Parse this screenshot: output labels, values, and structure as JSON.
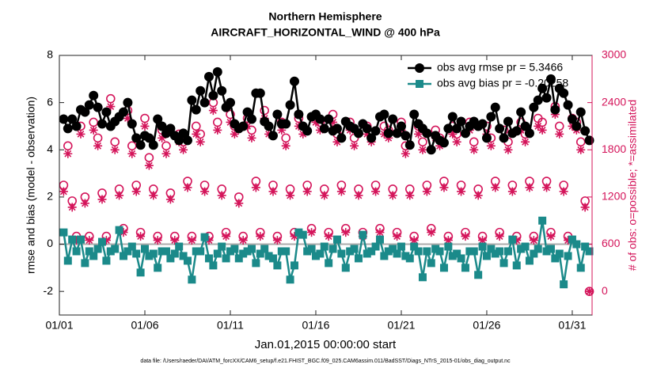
{
  "chart_data": {
    "type": "line",
    "title": "Northern Hemisphere",
    "subtitle": "AIRCRAFT_HORIZONTAL_WIND @ 400 hPa",
    "xlabel": "Jan.01,2015 00:00:00 start",
    "ylabel": "rmse and bias (model - observation)",
    "y2label": "# of obs: o=possible; *=assimilated",
    "footnote": "data file: /Users/raeder/DAI/ATM_forcXX/CAM6_setup/f.e21.FHIST_BGC.f09_025.CAM6assim.011/BadSST/Diags_NTrS_2015-01/obs_diag_output.nc",
    "legend": "northeast",
    "xlim": [
      1,
      32.16
    ],
    "xticks": [
      {
        "value": 1,
        "label": "01/01"
      },
      {
        "value": 6,
        "label": "01/06"
      },
      {
        "value": 11,
        "label": "01/11"
      },
      {
        "value": 16,
        "label": "01/16"
      },
      {
        "value": 21,
        "label": "01/21"
      },
      {
        "value": 26,
        "label": "01/26"
      },
      {
        "value": 31,
        "label": "01/31"
      }
    ],
    "ylim": [
      -3,
      8
    ],
    "yticks": [
      -2,
      0,
      2,
      4,
      6,
      8
    ],
    "y2lim": [
      -300,
      3000
    ],
    "y2ticks": [
      0,
      600,
      1200,
      1800,
      2400,
      3000
    ],
    "y2color": "#d4145a",
    "x": [
      1.25,
      1.5,
      1.75,
      2,
      2.25,
      2.5,
      2.75,
      3,
      3.25,
      3.5,
      3.75,
      4,
      4.25,
      4.5,
      4.75,
      5,
      5.25,
      5.5,
      5.75,
      6,
      6.25,
      6.5,
      6.75,
      7,
      7.25,
      7.5,
      7.75,
      8,
      8.25,
      8.5,
      8.75,
      9,
      9.25,
      9.5,
      9.75,
      10,
      10.25,
      10.5,
      10.75,
      11,
      11.25,
      11.5,
      11.75,
      12,
      12.25,
      12.5,
      12.75,
      13,
      13.25,
      13.5,
      13.75,
      14,
      14.25,
      14.5,
      14.75,
      15,
      15.25,
      15.5,
      15.75,
      16,
      16.25,
      16.5,
      16.75,
      17,
      17.25,
      17.5,
      17.75,
      18,
      18.25,
      18.5,
      18.75,
      19,
      19.25,
      19.5,
      19.75,
      20,
      20.25,
      20.5,
      20.75,
      21,
      21.25,
      21.5,
      21.75,
      22,
      22.25,
      22.5,
      22.75,
      23,
      23.25,
      23.5,
      23.75,
      24,
      24.25,
      24.5,
      24.75,
      25,
      25.25,
      25.5,
      25.75,
      26,
      26.25,
      26.5,
      26.75,
      27,
      27.25,
      27.5,
      27.75,
      28,
      28.25,
      28.5,
      28.75,
      29,
      29.25,
      29.5,
      29.75,
      30,
      30.25,
      30.5,
      30.75,
      31,
      31.25,
      31.5,
      31.75,
      32
    ],
    "series": [
      {
        "name": "obs avg rmse pr = 5.3466",
        "color": "#000000",
        "marker": "circle",
        "axis": "y",
        "values": [
          5.3,
          4.9,
          5.3,
          5.0,
          5.7,
          5.6,
          5.9,
          6.3,
          5.8,
          5.1,
          5.6,
          5.0,
          5.2,
          5.4,
          5.6,
          6.0,
          5.1,
          4.5,
          4.2,
          4.6,
          4.5,
          4.2,
          5.3,
          5.0,
          4.7,
          4.9,
          4.6,
          4.4,
          4.7,
          4.4,
          6.1,
          5.7,
          6.5,
          6.0,
          7.1,
          6.3,
          7.3,
          6.5,
          5.8,
          6.0,
          5.1,
          4.9,
          5.0,
          5.6,
          5.3,
          6.4,
          6.4,
          5.2,
          5.0,
          4.6,
          5.5,
          5.1,
          5.1,
          5.9,
          6.9,
          5.5,
          5.0,
          4.8,
          5.4,
          5.5,
          5.3,
          4.9,
          5.3,
          4.8,
          4.9,
          4.5,
          5.2,
          5.0,
          4.9,
          4.7,
          5.1,
          4.9,
          4.5,
          4.8,
          5.4,
          5.5,
          4.7,
          5.3,
          4.7,
          5.0,
          4.6,
          4.2,
          5.5,
          5.1,
          4.9,
          4.7,
          4.0,
          4.6,
          4.4,
          4.3,
          4.9,
          5.4,
          4.9,
          5.2,
          4.7,
          5.0,
          5.2,
          5.0,
          5.1,
          4.5,
          5.4,
          5.8,
          4.9,
          4.5,
          5.2,
          4.7,
          4.8,
          5.6,
          5.0,
          4.7,
          5.8,
          6.1,
          6.6,
          6.2,
          7.0,
          5.7,
          6.6,
          6.4,
          5.9,
          5.3,
          5.0,
          5.6,
          4.8,
          4.4
        ]
      },
      {
        "name": "obs avg bias pr = -0.20258",
        "color": "#1b8a8a",
        "marker": "square",
        "axis": "y",
        "values": [
          0.5,
          -0.7,
          0.2,
          -0.3,
          0.2,
          -0.8,
          -0.3,
          -0.5,
          -0.2,
          0.1,
          -0.7,
          -0.3,
          -0.2,
          0.6,
          -0.5,
          -0.3,
          -0.1,
          -0.4,
          -1.2,
          -0.2,
          -0.5,
          -0.4,
          -1.0,
          -0.3,
          -0.3,
          -0.6,
          -0.4,
          -0.1,
          -0.5,
          -0.7,
          -1.5,
          -0.3,
          -0.3,
          0.3,
          -0.6,
          -0.9,
          -0.4,
          -0.1,
          -0.6,
          -0.3,
          -0.2,
          -0.6,
          -0.4,
          -0.3,
          -0.2,
          -0.8,
          -0.4,
          -0.2,
          -0.5,
          -0.6,
          -0.9,
          -0.3,
          -0.3,
          -1.5,
          -0.9,
          0.5,
          0.4,
          -0.3,
          -0.2,
          -0.5,
          -0.4,
          -0.1,
          -0.8,
          -0.2,
          0.2,
          -0.4,
          -1.0,
          -0.3,
          -0.2,
          -0.6,
          0.4,
          -0.4,
          -0.3,
          -0.1,
          0.2,
          -0.5,
          -0.3,
          -0.2,
          -0.4,
          -0.1,
          -0.5,
          -0.6,
          -0.1,
          -0.3,
          -1.4,
          -0.3,
          -0.8,
          -0.2,
          -0.3,
          -1.0,
          -0.1,
          -0.5,
          -0.4,
          -0.6,
          -1.0,
          -0.3,
          -0.3,
          -1.3,
          -0.1,
          -0.5,
          -0.2,
          -0.4,
          -0.3,
          -0.8,
          -0.3,
          0.2,
          -0.9,
          -0.2,
          -0.1,
          -0.7,
          -0.4,
          -0.2,
          1.0,
          -0.3,
          -0.2,
          -0.6,
          -0.4,
          -1.7,
          -0.5,
          0.2,
          0.0,
          -1.0,
          -0.1,
          -0.3
        ]
      },
      {
        "color": "#d4145a",
        "marker": "open-circle",
        "axis": "y2",
        "values": [
          1350,
          1850,
          1150,
          700,
          2100,
          1200,
          700,
          2150,
          1950,
          1250,
          700,
          2450,
          1900,
          1300,
          800,
          2300,
          1850,
          1350,
          750,
          2200,
          1700,
          1300,
          700,
          2050,
          1850,
          1250,
          700,
          2000,
          1900,
          1400,
          700,
          2100,
          2000,
          1350,
          700,
          2400,
          2150,
          1300,
          750,
          2250,
          2100,
          1200,
          700,
          2200,
          2050,
          1400,
          750,
          2300,
          2100,
          1350,
          700,
          2150,
          1950,
          1300,
          750,
          2200,
          2100,
          1350,
          800,
          2250,
          2150,
          1300,
          750,
          2250,
          2000,
          1350,
          800,
          2150,
          1950,
          1300,
          750,
          2100,
          2000,
          1350,
          800,
          2100,
          2050,
          1300,
          750,
          2150,
          1850,
          1300,
          700,
          2100,
          1900,
          1350,
          800,
          2050,
          1950,
          1400,
          700,
          2100,
          2000,
          1350,
          750,
          2150,
          1900,
          1300,
          700,
          2100,
          1950,
          1400,
          750,
          2050,
          1900,
          1350,
          700,
          2150,
          2000,
          1400,
          700,
          2200,
          2150,
          1400,
          750,
          2350,
          2100,
          1350,
          700,
          2200,
          2150,
          1900,
          1150,
          0
        ]
      },
      {
        "color": "#d4145a",
        "marker": "asterisk",
        "axis": "y2",
        "values": [
          1270,
          1750,
          1070,
          650,
          2000,
          1120,
          650,
          2050,
          1850,
          1170,
          650,
          2350,
          1800,
          1220,
          750,
          2200,
          1750,
          1270,
          700,
          2100,
          1600,
          1220,
          650,
          1950,
          1750,
          1170,
          650,
          1900,
          1800,
          1320,
          650,
          2000,
          1900,
          1270,
          650,
          2300,
          2050,
          1220,
          700,
          2150,
          2000,
          1120,
          650,
          2100,
          1950,
          1320,
          700,
          2200,
          2000,
          1270,
          650,
          2050,
          1850,
          1220,
          700,
          2100,
          2000,
          1270,
          750,
          2150,
          2050,
          1220,
          700,
          2150,
          1900,
          1270,
          750,
          2050,
          1850,
          1220,
          700,
          2000,
          1900,
          1270,
          750,
          2000,
          1950,
          1220,
          700,
          2050,
          1750,
          1220,
          650,
          2000,
          1800,
          1270,
          750,
          1950,
          1850,
          1320,
          650,
          2000,
          1900,
          1270,
          700,
          2050,
          1800,
          1220,
          650,
          2000,
          1850,
          1320,
          700,
          1950,
          1800,
          1270,
          650,
          2050,
          1900,
          1320,
          650,
          2100,
          2050,
          1320,
          700,
          2250,
          2000,
          1270,
          650,
          2100,
          2050,
          1800,
          1070,
          0
        ]
      }
    ]
  }
}
